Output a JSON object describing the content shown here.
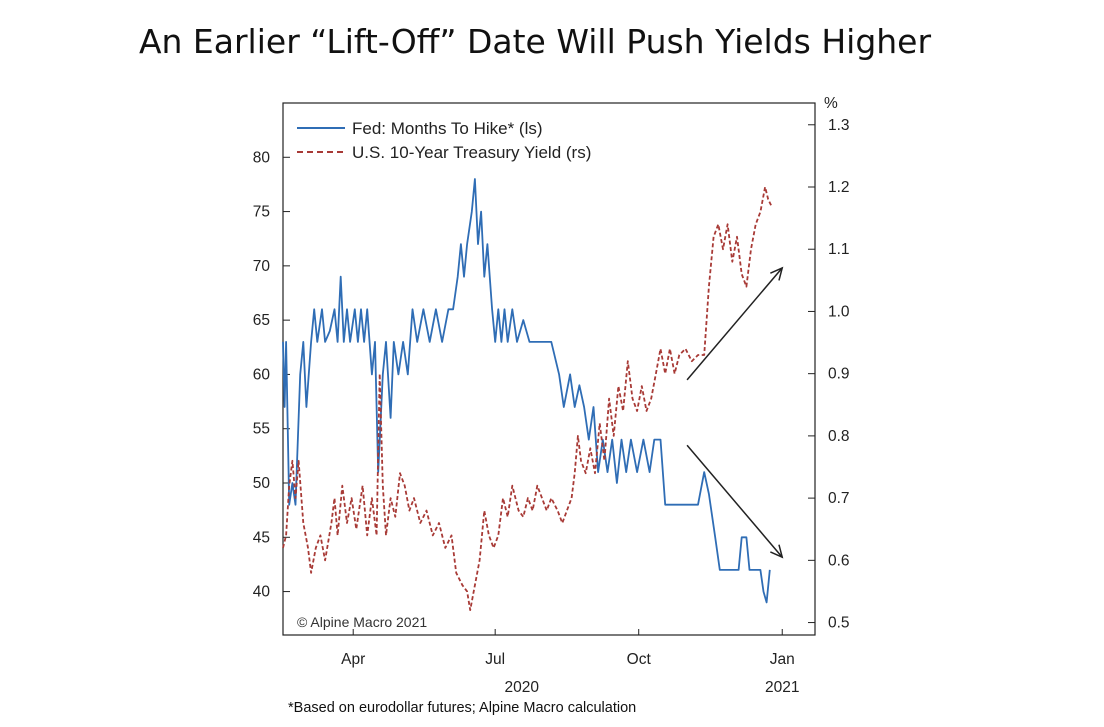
{
  "title": "An Earlier “Lift-Off” Date Will Push Yields Higher",
  "footnote": "*Based on eurodollar futures; Alpine Macro calculation",
  "copyright": "© Alpine Macro 2021",
  "colors": {
    "fed": "#2f6db5",
    "yield": "#a83a36",
    "arrow": "#222222",
    "axis": "#222222"
  },
  "chart_data": {
    "type": "line",
    "xlabel": "",
    "x_ticks": [
      {
        "label": "Apr",
        "date": "2020-04-15"
      },
      {
        "label": "Jul",
        "date": "2020-07-15"
      },
      {
        "label": "Oct",
        "date": "2020-10-15"
      },
      {
        "label": "Jan",
        "date": "2021-01-15"
      }
    ],
    "year_labels": [
      {
        "label": "2020",
        "date": "2020-08-01"
      },
      {
        "label": "2021",
        "date": "2021-01-15"
      }
    ],
    "xlim": [
      "2020-03-01",
      "2021-02-05"
    ],
    "y_left": {
      "label": "",
      "lim": [
        36,
        85
      ],
      "ticks": [
        40,
        45,
        50,
        55,
        60,
        65,
        70,
        75,
        80
      ]
    },
    "y_right": {
      "label": "%",
      "lim": [
        0.48,
        1.335
      ],
      "ticks": [
        0.5,
        0.6,
        0.7,
        0.8,
        0.9,
        1.0,
        1.1,
        1.2,
        1.3
      ],
      "tick_labels": [
        "0.5",
        "0.6",
        "0.7",
        "0.8",
        "0.9",
        "1.0",
        "1.1",
        "1.2",
        "1.3"
      ]
    },
    "legend_position": "top-left",
    "series": [
      {
        "name": "Fed: Months To Hike* (ls)",
        "axis": "left",
        "style": "solid",
        "points": [
          [
            "2020-03-01",
            63
          ],
          [
            "2020-03-02",
            57
          ],
          [
            "2020-03-03",
            63
          ],
          [
            "2020-03-05",
            48
          ],
          [
            "2020-03-07",
            50
          ],
          [
            "2020-03-09",
            48
          ],
          [
            "2020-03-12",
            60
          ],
          [
            "2020-03-14",
            63
          ],
          [
            "2020-03-16",
            57
          ],
          [
            "2020-03-19",
            63
          ],
          [
            "2020-03-21",
            66
          ],
          [
            "2020-03-23",
            63
          ],
          [
            "2020-03-26",
            66
          ],
          [
            "2020-03-28",
            63
          ],
          [
            "2020-03-31",
            64
          ],
          [
            "2020-04-03",
            66
          ],
          [
            "2020-04-05",
            63
          ],
          [
            "2020-04-07",
            69
          ],
          [
            "2020-04-09",
            63
          ],
          [
            "2020-04-11",
            66
          ],
          [
            "2020-04-13",
            63
          ],
          [
            "2020-04-16",
            66
          ],
          [
            "2020-04-18",
            63
          ],
          [
            "2020-04-20",
            66
          ],
          [
            "2020-04-22",
            63
          ],
          [
            "2020-04-24",
            66
          ],
          [
            "2020-04-27",
            60
          ],
          [
            "2020-04-29",
            63
          ],
          [
            "2020-05-01",
            51
          ],
          [
            "2020-05-04",
            60
          ],
          [
            "2020-05-06",
            63
          ],
          [
            "2020-05-09",
            56
          ],
          [
            "2020-05-11",
            63
          ],
          [
            "2020-05-14",
            60
          ],
          [
            "2020-05-17",
            63
          ],
          [
            "2020-05-20",
            60
          ],
          [
            "2020-05-23",
            66
          ],
          [
            "2020-05-26",
            63
          ],
          [
            "2020-05-30",
            66
          ],
          [
            "2020-06-03",
            63
          ],
          [
            "2020-06-07",
            66
          ],
          [
            "2020-06-11",
            63
          ],
          [
            "2020-06-15",
            66
          ],
          [
            "2020-06-18",
            66
          ],
          [
            "2020-06-21",
            69
          ],
          [
            "2020-06-23",
            72
          ],
          [
            "2020-06-25",
            69
          ],
          [
            "2020-06-27",
            72
          ],
          [
            "2020-06-30",
            75
          ],
          [
            "2020-07-02",
            78
          ],
          [
            "2020-07-04",
            72
          ],
          [
            "2020-07-06",
            75
          ],
          [
            "2020-07-08",
            69
          ],
          [
            "2020-07-10",
            72
          ],
          [
            "2020-07-13",
            66
          ],
          [
            "2020-07-15",
            63
          ],
          [
            "2020-07-17",
            66
          ],
          [
            "2020-07-19",
            63
          ],
          [
            "2020-07-21",
            66
          ],
          [
            "2020-07-23",
            63
          ],
          [
            "2020-07-26",
            66
          ],
          [
            "2020-07-29",
            63
          ],
          [
            "2020-08-02",
            65
          ],
          [
            "2020-08-06",
            63
          ],
          [
            "2020-08-10",
            63
          ],
          [
            "2020-08-15",
            63
          ],
          [
            "2020-08-20",
            63
          ],
          [
            "2020-08-25",
            60
          ],
          [
            "2020-08-28",
            57
          ],
          [
            "2020-09-01",
            60
          ],
          [
            "2020-09-04",
            57
          ],
          [
            "2020-09-07",
            59
          ],
          [
            "2020-09-10",
            57
          ],
          [
            "2020-09-13",
            54
          ],
          [
            "2020-09-16",
            57
          ],
          [
            "2020-09-19",
            51
          ],
          [
            "2020-09-22",
            54
          ],
          [
            "2020-09-25",
            51
          ],
          [
            "2020-09-28",
            54
          ],
          [
            "2020-10-01",
            50
          ],
          [
            "2020-10-04",
            54
          ],
          [
            "2020-10-07",
            51
          ],
          [
            "2020-10-10",
            54
          ],
          [
            "2020-10-14",
            51
          ],
          [
            "2020-10-18",
            54
          ],
          [
            "2020-10-22",
            51
          ],
          [
            "2020-10-25",
            54
          ],
          [
            "2020-10-29",
            54
          ],
          [
            "2020-11-01",
            48
          ],
          [
            "2020-11-08",
            48
          ],
          [
            "2020-11-15",
            48
          ],
          [
            "2020-11-22",
            48
          ],
          [
            "2020-11-26",
            51
          ],
          [
            "2020-11-29",
            49
          ],
          [
            "2020-12-03",
            45
          ],
          [
            "2020-12-06",
            42
          ],
          [
            "2020-12-12",
            42
          ],
          [
            "2020-12-18",
            42
          ],
          [
            "2020-12-20",
            45
          ],
          [
            "2020-12-23",
            45
          ],
          [
            "2020-12-25",
            42
          ],
          [
            "2020-12-29",
            42
          ],
          [
            "2021-01-01",
            42
          ],
          [
            "2021-01-03",
            40
          ],
          [
            "2021-01-05",
            39
          ],
          [
            "2021-01-07",
            42
          ]
        ]
      },
      {
        "name": "U.S. 10-Year Treasury Yield (rs)",
        "axis": "right",
        "style": "dashed",
        "points": [
          [
            "2020-03-01",
            0.62
          ],
          [
            "2020-03-03",
            0.64
          ],
          [
            "2020-03-05",
            0.72
          ],
          [
            "2020-03-07",
            0.76
          ],
          [
            "2020-03-09",
            0.7
          ],
          [
            "2020-03-11",
            0.76
          ],
          [
            "2020-03-14",
            0.66
          ],
          [
            "2020-03-17",
            0.62
          ],
          [
            "2020-03-19",
            0.58
          ],
          [
            "2020-03-22",
            0.62
          ],
          [
            "2020-03-25",
            0.64
          ],
          [
            "2020-03-28",
            0.6
          ],
          [
            "2020-04-01",
            0.66
          ],
          [
            "2020-04-03",
            0.7
          ],
          [
            "2020-04-05",
            0.64
          ],
          [
            "2020-04-08",
            0.72
          ],
          [
            "2020-04-11",
            0.66
          ],
          [
            "2020-04-14",
            0.7
          ],
          [
            "2020-04-17",
            0.65
          ],
          [
            "2020-04-21",
            0.72
          ],
          [
            "2020-04-24",
            0.64
          ],
          [
            "2020-04-27",
            0.7
          ],
          [
            "2020-04-30",
            0.64
          ],
          [
            "2020-05-02",
            0.9
          ],
          [
            "2020-05-04",
            0.72
          ],
          [
            "2020-05-06",
            0.64
          ],
          [
            "2020-05-09",
            0.7
          ],
          [
            "2020-05-12",
            0.67
          ],
          [
            "2020-05-15",
            0.74
          ],
          [
            "2020-05-18",
            0.72
          ],
          [
            "2020-05-21",
            0.68
          ],
          [
            "2020-05-24",
            0.7
          ],
          [
            "2020-05-28",
            0.66
          ],
          [
            "2020-06-01",
            0.68
          ],
          [
            "2020-06-05",
            0.64
          ],
          [
            "2020-06-09",
            0.66
          ],
          [
            "2020-06-13",
            0.62
          ],
          [
            "2020-06-17",
            0.64
          ],
          [
            "2020-06-20",
            0.58
          ],
          [
            "2020-06-24",
            0.56
          ],
          [
            "2020-06-27",
            0.55
          ],
          [
            "2020-06-29",
            0.52
          ],
          [
            "2020-07-02",
            0.56
          ],
          [
            "2020-07-05",
            0.6
          ],
          [
            "2020-07-08",
            0.68
          ],
          [
            "2020-07-11",
            0.64
          ],
          [
            "2020-07-14",
            0.62
          ],
          [
            "2020-07-17",
            0.64
          ],
          [
            "2020-07-20",
            0.7
          ],
          [
            "2020-07-23",
            0.67
          ],
          [
            "2020-07-26",
            0.72
          ],
          [
            "2020-07-30",
            0.68
          ],
          [
            "2020-08-02",
            0.67
          ],
          [
            "2020-08-05",
            0.7
          ],
          [
            "2020-08-08",
            0.68
          ],
          [
            "2020-08-11",
            0.72
          ],
          [
            "2020-08-14",
            0.7
          ],
          [
            "2020-08-17",
            0.68
          ],
          [
            "2020-08-20",
            0.7
          ],
          [
            "2020-08-24",
            0.68
          ],
          [
            "2020-08-27",
            0.66
          ],
          [
            "2020-08-30",
            0.68
          ],
          [
            "2020-09-02",
            0.7
          ],
          [
            "2020-09-04",
            0.74
          ],
          [
            "2020-09-06",
            0.8
          ],
          [
            "2020-09-08",
            0.76
          ],
          [
            "2020-09-11",
            0.74
          ],
          [
            "2020-09-14",
            0.78
          ],
          [
            "2020-09-17",
            0.74
          ],
          [
            "2020-09-20",
            0.82
          ],
          [
            "2020-09-23",
            0.76
          ],
          [
            "2020-09-26",
            0.86
          ],
          [
            "2020-09-29",
            0.8
          ],
          [
            "2020-10-02",
            0.88
          ],
          [
            "2020-10-05",
            0.84
          ],
          [
            "2020-10-08",
            0.92
          ],
          [
            "2020-10-11",
            0.86
          ],
          [
            "2020-10-14",
            0.84
          ],
          [
            "2020-10-17",
            0.88
          ],
          [
            "2020-10-20",
            0.84
          ],
          [
            "2020-10-23",
            0.86
          ],
          [
            "2020-10-26",
            0.9
          ],
          [
            "2020-10-29",
            0.94
          ],
          [
            "2020-11-01",
            0.9
          ],
          [
            "2020-11-04",
            0.94
          ],
          [
            "2020-11-07",
            0.9
          ],
          [
            "2020-11-10",
            0.93
          ],
          [
            "2020-11-14",
            0.94
          ],
          [
            "2020-11-18",
            0.92
          ],
          [
            "2020-11-22",
            0.93
          ],
          [
            "2020-11-26",
            0.93
          ],
          [
            "2020-11-29",
            1.04
          ],
          [
            "2020-12-02",
            1.12
          ],
          [
            "2020-12-05",
            1.14
          ],
          [
            "2020-12-08",
            1.1
          ],
          [
            "2020-12-11",
            1.14
          ],
          [
            "2020-12-14",
            1.08
          ],
          [
            "2020-12-17",
            1.12
          ],
          [
            "2020-12-20",
            1.06
          ],
          [
            "2020-12-23",
            1.04
          ],
          [
            "2020-12-26",
            1.1
          ],
          [
            "2020-12-29",
            1.14
          ],
          [
            "2021-01-01",
            1.16
          ],
          [
            "2021-01-04",
            1.2
          ],
          [
            "2021-01-06",
            1.18
          ],
          [
            "2021-01-08",
            1.17
          ]
        ]
      }
    ],
    "arrows": [
      {
        "from": [
          "2020-11-15",
          0.89
        ],
        "to": [
          "2021-01-15",
          1.07
        ],
        "axis": "right"
      },
      {
        "from": [
          "2020-11-15",
          0.785
        ],
        "to": [
          "2021-01-15",
          0.605
        ],
        "axis": "right"
      }
    ]
  }
}
